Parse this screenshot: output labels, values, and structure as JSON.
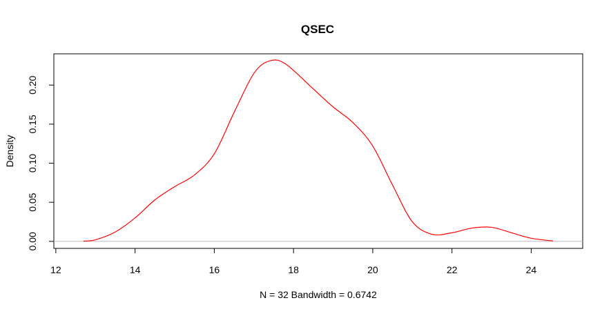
{
  "chart_data": {
    "type": "line",
    "title": "QSEC",
    "xlabel": "N = 32   Bandwidth = 0.6742",
    "ylabel": "Density",
    "xlim": [
      11.95,
      25.3
    ],
    "ylim": [
      -0.009,
      0.24
    ],
    "x_ticks": [
      "12",
      "14",
      "16",
      "18",
      "20",
      "22",
      "24"
    ],
    "y_ticks": [
      "0.00",
      "0.05",
      "0.10",
      "0.15",
      "0.20"
    ],
    "baseline": 0,
    "grid": false,
    "legend": "none",
    "series": [
      {
        "color": "#ff0000",
        "x": [
          12.7,
          13.0,
          13.5,
          14.0,
          14.5,
          15.0,
          15.5,
          16.0,
          16.5,
          17.0,
          17.4,
          17.8,
          18.5,
          19.0,
          19.5,
          20.0,
          20.5,
          21.0,
          21.5,
          22.0,
          22.5,
          23.0,
          23.5,
          24.0,
          24.55
        ],
        "y": [
          0.0003,
          0.002,
          0.012,
          0.03,
          0.053,
          0.07,
          0.085,
          0.112,
          0.165,
          0.215,
          0.231,
          0.227,
          0.195,
          0.172,
          0.152,
          0.122,
          0.072,
          0.025,
          0.009,
          0.011,
          0.017,
          0.018,
          0.011,
          0.004,
          0.0005
        ]
      }
    ]
  }
}
